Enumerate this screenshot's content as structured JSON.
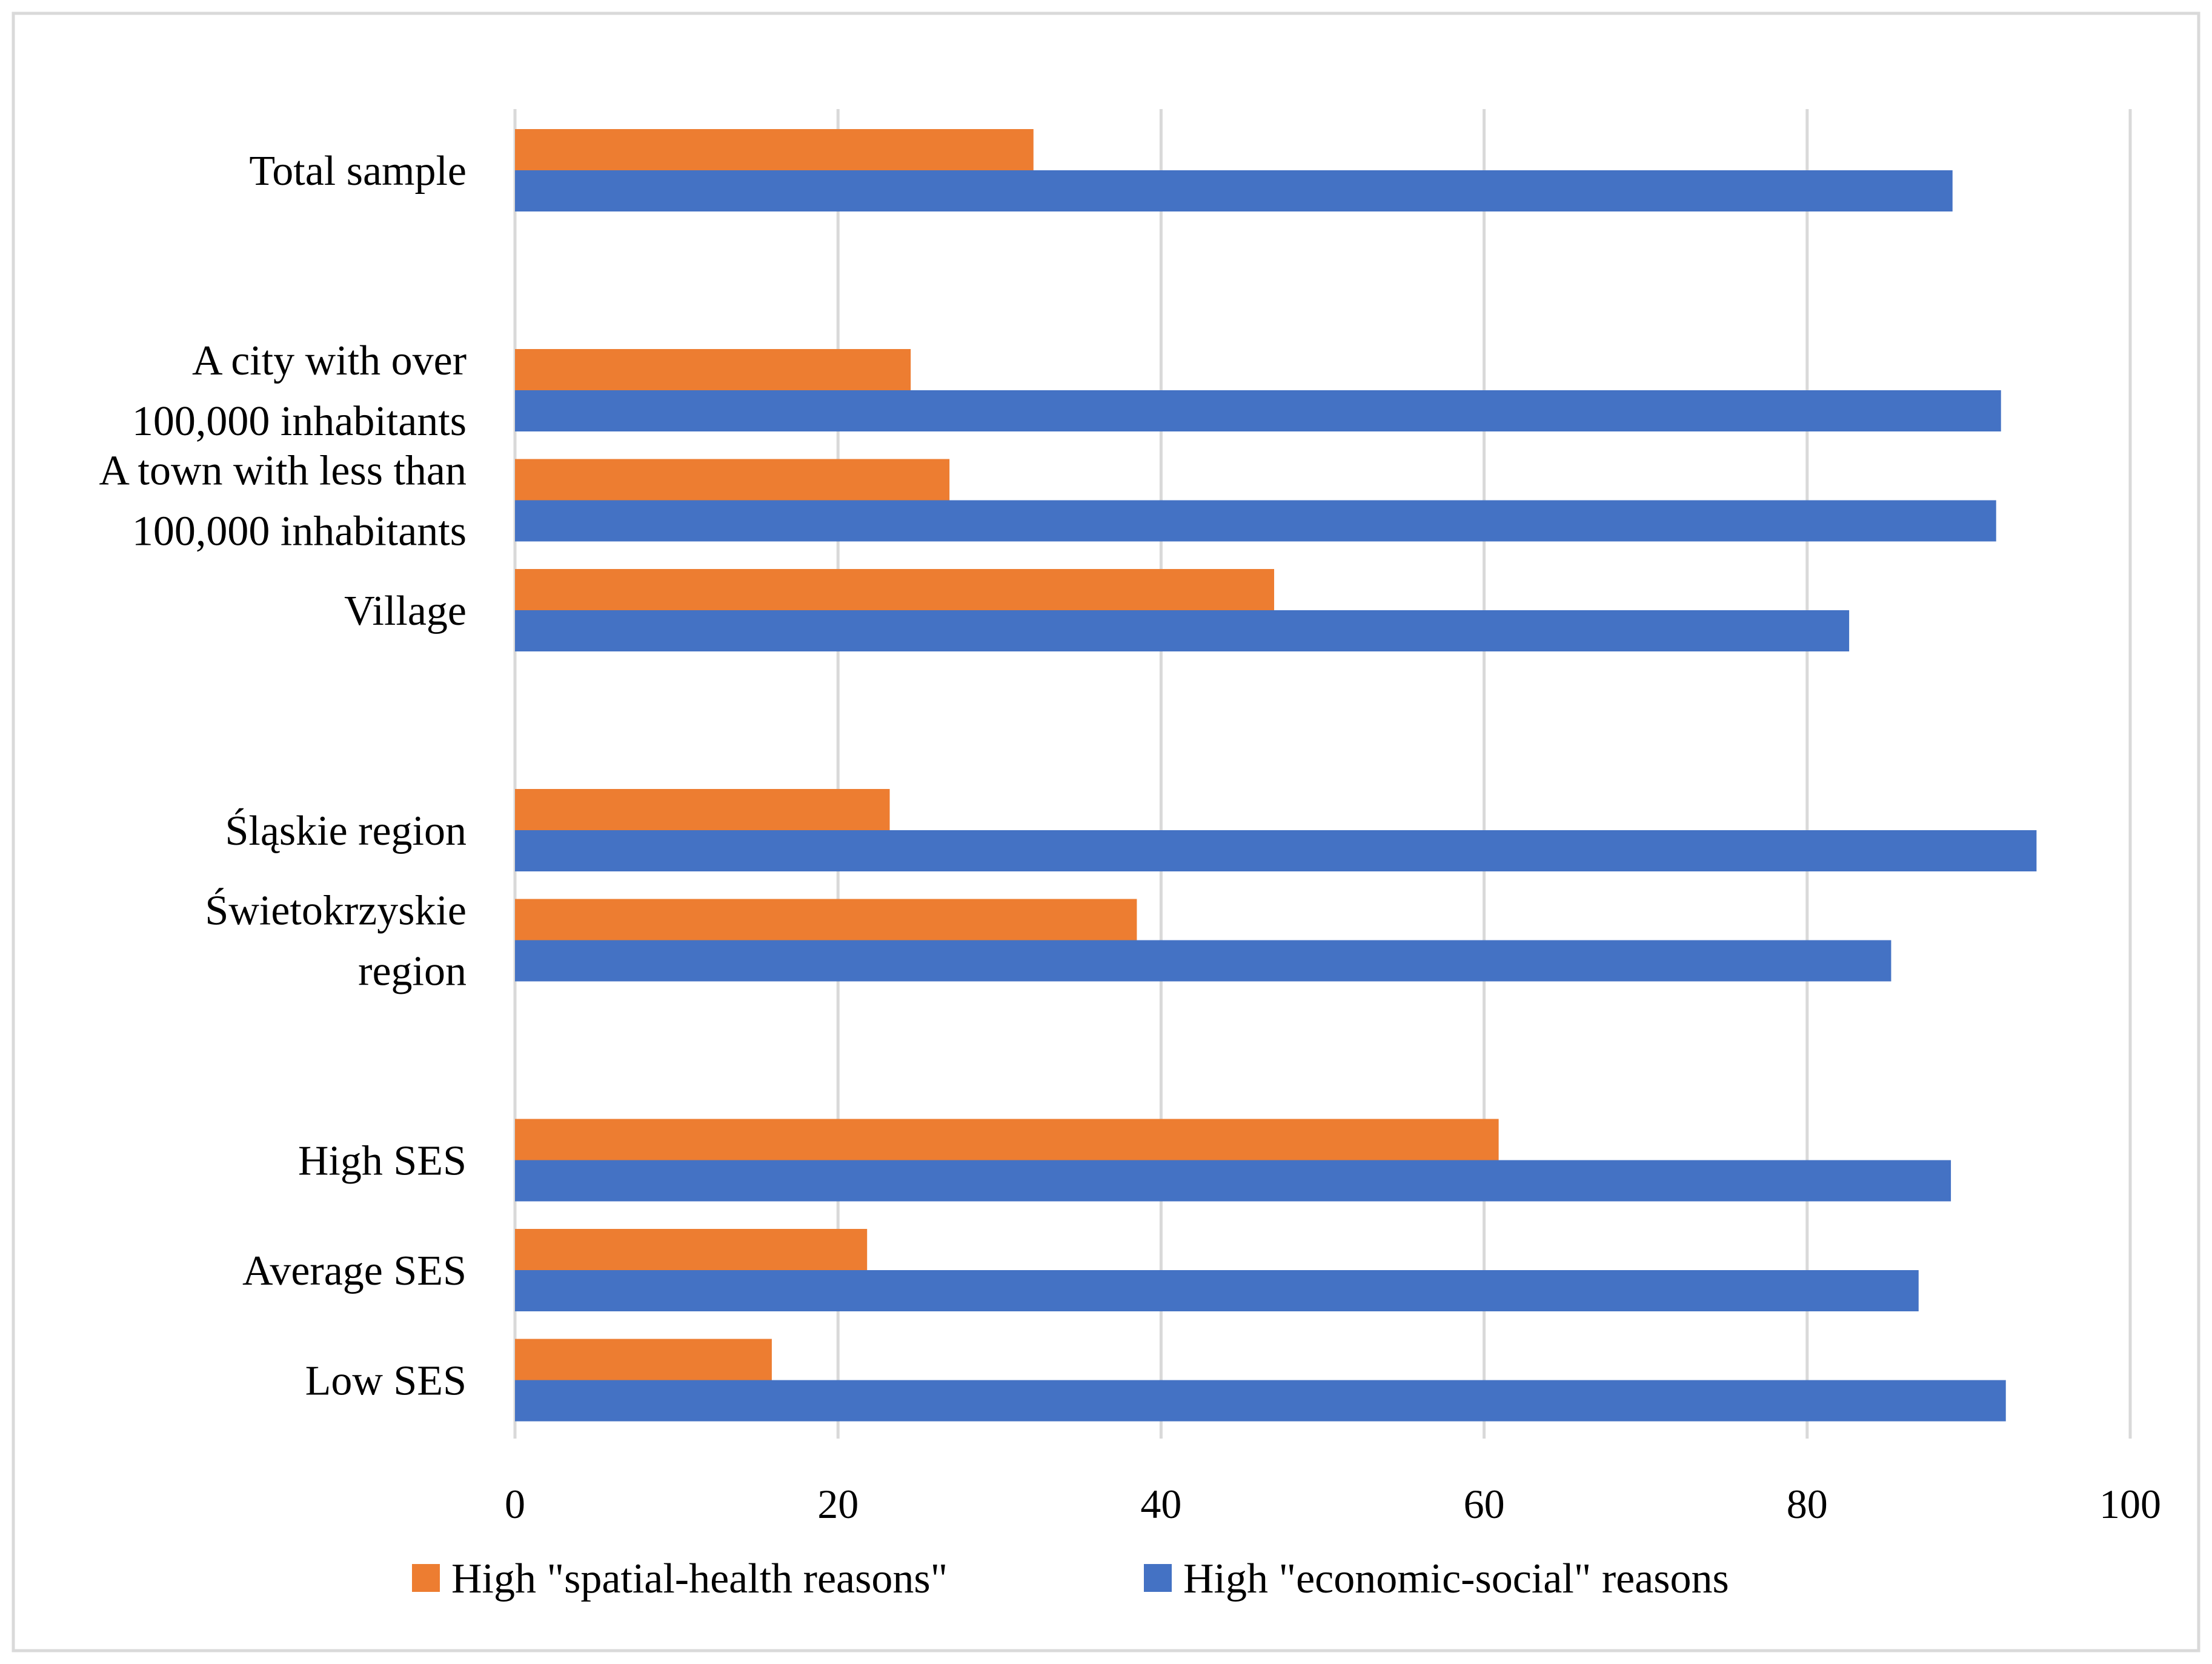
{
  "chart_data": {
    "type": "bar",
    "orientation": "horizontal",
    "categories": [
      {
        "lines": [
          "Total sample"
        ],
        "slot": 0
      },
      {
        "lines": [
          "A city with over",
          "100,000 inhabitants"
        ],
        "slot": 2
      },
      {
        "lines": [
          "A town with less than",
          "100,000 inhabitants"
        ],
        "slot": 3
      },
      {
        "lines": [
          "Village"
        ],
        "slot": 4
      },
      {
        "lines": [
          "Śląskie region"
        ],
        "slot": 6
      },
      {
        "lines": [
          "Świetokrzyskie",
          "region"
        ],
        "slot": 7
      },
      {
        "lines": [
          "High SES"
        ],
        "slot": 9
      },
      {
        "lines": [
          "Average SES"
        ],
        "slot": 10
      },
      {
        "lines": [
          "Low SES"
        ],
        "slot": 11
      }
    ],
    "series": [
      {
        "name": "High \"spatial-health reasons\"",
        "color": "#ED7D31",
        "values": [
          32.1,
          24.5,
          26.9,
          47,
          23.2,
          38.5,
          60.9,
          21.8,
          15.9
        ]
      },
      {
        "name": "High \"economic-social\" reasons",
        "color": "#4472C4",
        "values": [
          89,
          92,
          91.7,
          82.6,
          94.2,
          85.2,
          88.9,
          86.9,
          92.3
        ]
      }
    ],
    "xlim": [
      0,
      100
    ],
    "xticks": [
      0,
      20,
      40,
      60,
      80,
      100
    ],
    "xtick_labels": [
      "0",
      "20",
      "40",
      "60",
      "80",
      "100"
    ],
    "grid": true,
    "legend": "bottom",
    "title": "",
    "xlabel": "",
    "ylabel": ""
  }
}
